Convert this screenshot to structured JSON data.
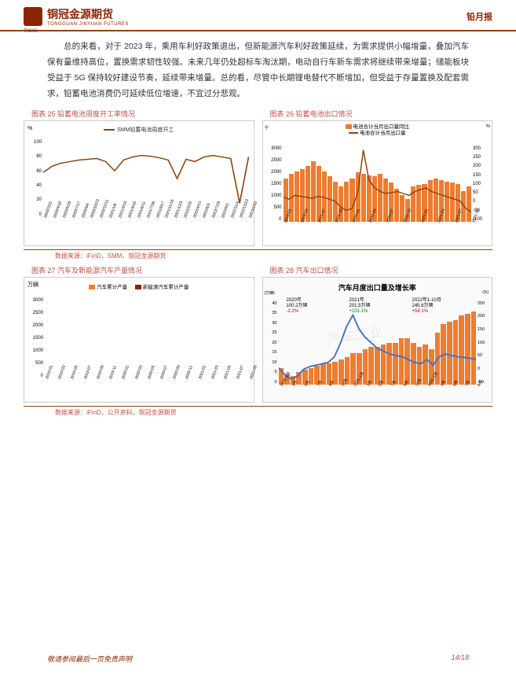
{
  "header": {
    "company_cn": "铜冠金源期货",
    "company_en": "TONGGUAN JINYUAN FUTURES",
    "logo_abbr": "TNMG",
    "report_label": "铅月报"
  },
  "paragraph": "总的来看，对于 2023 年，乘用车利好政策退出，但新能源汽车利好政策延续，为需求提供小幅增量，叠加汽车保有量维持高位，置换需求韧性较强。未来几年仍处超标车淘汰期，电动自行车新车需求将继续带来增量；储能板块受益于 5G 保持较好建设节奏，延续带来增量。总的看，尽管中长期锂电替代不断增加，但受益于存量置换及配套需求，铅蓄电池消费仍可延续低位增速，不宜过分悲观。",
  "chart25": {
    "title": "图表 25 铅蓄电池周度开工率情况",
    "type": "line",
    "legend": "SMM铅蓄电池周度开工",
    "y_unit": "%",
    "ylim": [
      0,
      100
    ],
    "ytick_step": 20,
    "line_color": "#8b4513",
    "x_labels": [
      "2020/2/21",
      "2020/4/10",
      "2020/5/29",
      "2020/7/17",
      "2020/9/4",
      "2020/10/23",
      "2020/12/11",
      "2021/1/6",
      "2021/3/19",
      "2021/4/16",
      "2021/6/11",
      "2021/7/30",
      "2021/9/17",
      "2021/11/19",
      "2021/12/3",
      "2022/2/25",
      "2022/4/15",
      "2022/6/3",
      "2022/7/29",
      "2022/9/2",
      "2022/11/4",
      "2022/12/23",
      "2023/2/10"
    ],
    "values": [
      58,
      66,
      70,
      72,
      74,
      75,
      76,
      72,
      60,
      74,
      78,
      80,
      79,
      77,
      74,
      50,
      75,
      72,
      78,
      80,
      78,
      76,
      18,
      78
    ],
    "background_color": "#ffffff"
  },
  "chart26": {
    "title": "图表 26 铅蓄电池出口情况",
    "type": "bar+line",
    "legend_bar": "电池合计当月出口量同比",
    "legend_line": "电池合计当月出口量",
    "yl_unit": "个",
    "yr_unit": "%",
    "yl_lim": [
      0,
      3000
    ],
    "yl_tick_step": 500,
    "yr_lim": [
      -100,
      300
    ],
    "yr_tick_step": 50,
    "bar_color": "#ed7d31",
    "line_color": "#8b4513",
    "x_labels": [
      "2019-01",
      "2019-04",
      "2019-07",
      "2019-10",
      "2020-01",
      "2020-04",
      "2020-07",
      "2020-10",
      "2021-01",
      "2021-04",
      "2021-07",
      "2021-10"
    ],
    "bar_values": [
      1400,
      1200,
      1500,
      1550,
      1600,
      1650,
      1700,
      1650,
      1500,
      1450,
      1400,
      900,
      1050,
      1300,
      1550,
      1700,
      1900,
      1800,
      1850,
      1900,
      1950,
      1700,
      1600,
      1400,
      1600,
      1800,
      2000,
      2200,
      2400,
      2200,
      2100,
      2000,
      1900,
      1700
    ],
    "line_values": [
      30,
      20,
      40,
      35,
      30,
      25,
      35,
      30,
      20,
      10,
      -20,
      -40,
      -30,
      50,
      280,
      120,
      80,
      60,
      50,
      55,
      60,
      50,
      40,
      60,
      70,
      80,
      60,
      50,
      40,
      30,
      20,
      10,
      -30,
      -50
    ],
    "background_color": "#ffffff"
  },
  "chart27": {
    "title": "图表 27 汽车及新能源汽车产量情况",
    "type": "grouped-bar",
    "legend1": "汽车累计产量",
    "legend2": "新能源汽车累计产量",
    "y_unit": "万辆",
    "ylim": [
      0,
      3000
    ],
    "ytick_step": 500,
    "bar1_color": "#ed7d31",
    "bar2_color": "#8b2500",
    "x_labels": [
      "2019-01",
      "2019-03",
      "2019-05",
      "2019-07",
      "2019-09",
      "2019-11",
      "2020-01",
      "2020-03",
      "2020-05",
      "2020-07",
      "2020-09",
      "2020-11",
      "2021-01",
      "2021-03",
      "2021-05",
      "2021-07",
      "2021-09"
    ],
    "series1": [
      200,
      600,
      1000,
      1400,
      1850,
      2300,
      2600,
      150,
      350,
      750,
      1200,
      1700,
      2200,
      2550,
      250,
      650,
      1050,
      1450,
      1850,
      2250,
      250,
      650,
      1050,
      1400,
      1750,
      2100,
      2400,
      200,
      500,
      900,
      1300,
      1650,
      2000
    ],
    "series2": [
      10,
      30,
      50,
      70,
      90,
      110,
      130,
      10,
      20,
      40,
      70,
      110,
      160,
      200,
      30,
      90,
      170,
      270,
      400,
      550,
      700,
      30,
      100,
      200,
      320,
      450,
      600,
      750,
      40,
      120,
      220,
      350,
      500,
      650
    ],
    "background_color": "#ffffff"
  },
  "chart28": {
    "title": "图表 28 汽车出口情况",
    "inner_title": "汽车月度出口量及增长率",
    "type": "bar+line",
    "yl_unit": "(万辆)",
    "yr_unit": "(%)",
    "yl_lim": [
      0,
      40
    ],
    "yl_tick_step": 5,
    "yr_lim": [
      -50,
      250
    ],
    "yr_tick_step": 50,
    "anno1_label": "2020年",
    "anno1_value": "100.2万辆",
    "anno1_pct": "-2.2%",
    "anno1_color": "#c00000",
    "anno2_label": "2021年",
    "anno2_value": "201.5万辆",
    "anno2_pct": "+101.1%",
    "anno2_color": "#008000",
    "anno3_label": "2022年1-10月",
    "anno3_value": "245.6万辆",
    "anno3_pct": "+54.1%",
    "anno3_color": "#c00000",
    "bar_color": "#ed7d31",
    "line_color": "#4472c4",
    "x_labels": [
      "2020.1月",
      "3月",
      "5月",
      "7月",
      "9月",
      "11月",
      "2021.1月",
      "3月",
      "5月",
      "7月",
      "9月",
      "11月",
      "2022.1月",
      "3月",
      "5月",
      "7月",
      "9月"
    ],
    "bar_values": [
      8,
      5,
      4,
      6,
      7,
      8,
      9,
      10,
      10,
      11,
      12,
      13,
      15,
      15,
      17,
      18,
      18,
      19,
      20,
      20,
      22,
      22,
      20,
      18,
      19,
      17,
      25,
      29,
      30,
      31,
      33,
      34,
      35
    ],
    "line_values": [
      10,
      -15,
      -30,
      -20,
      5,
      15,
      20,
      25,
      30,
      50,
      100,
      160,
      200,
      150,
      120,
      100,
      80,
      70,
      60,
      55,
      50,
      40,
      30,
      25,
      40,
      20,
      50,
      60,
      55,
      50,
      48,
      45,
      40
    ],
    "background_color": "#fafafa",
    "watermark": "汽车工业"
  },
  "sources": {
    "s1": "数据来源：iFinD，SMM，铜冠金源期货",
    "s2": "数据来源：iFinD，公开资料，铜冠金源期货"
  },
  "footer": {
    "disclaimer": "敬请参阅最后一页免责声明",
    "page": "14/18"
  },
  "colors": {
    "brand": "#8b2500",
    "accent": "#c0504d",
    "border": "#8b4513"
  }
}
